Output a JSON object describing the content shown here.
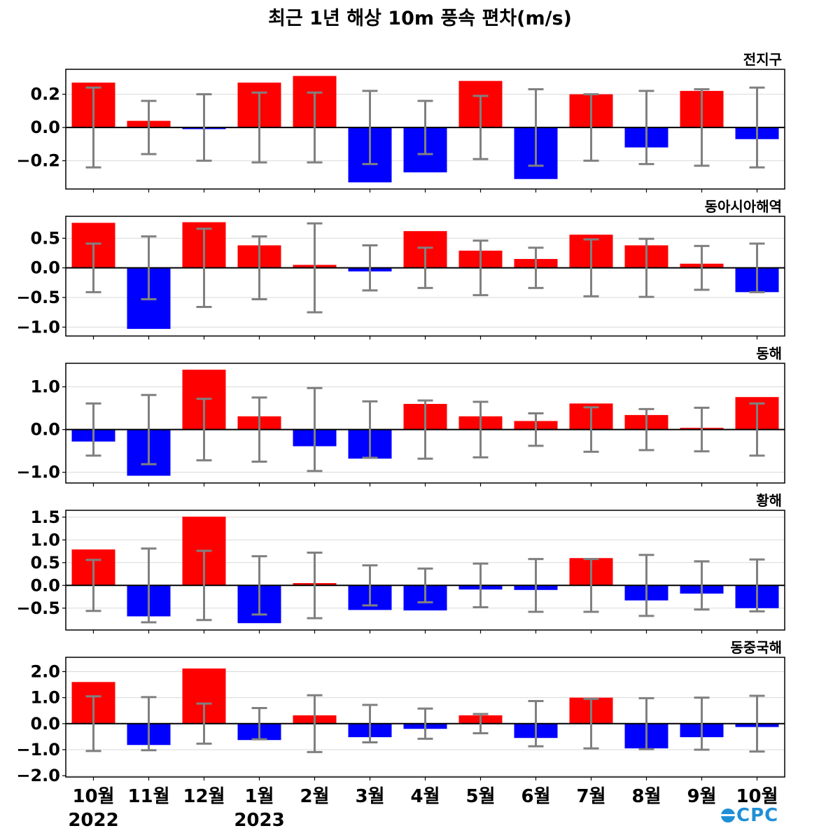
{
  "title": "최근 1년 해상 10m 풍속 편차(m/s)",
  "colors": {
    "positive": "#ff0000",
    "negative": "#0000ff",
    "errorbar": "#808080",
    "zero_line": "#000000",
    "grid": "#d9d9d9"
  },
  "logo": "OCPC",
  "chart_data": {
    "type": "bar",
    "categories": [
      "10월",
      "11월",
      "12월",
      "1월",
      "2월",
      "3월",
      "4월",
      "5월",
      "6월",
      "7월",
      "8월",
      "9월",
      "10월"
    ],
    "year_labels": [
      {
        "text": "2022",
        "category_index": 0
      },
      {
        "text": "2023",
        "category_index": 3
      }
    ],
    "panels": [
      {
        "title": "전지구",
        "ylim": [
          -0.37,
          0.35
        ],
        "yticks": [
          0.2,
          0.0,
          -0.2
        ],
        "ytick_labels": [
          "0.2",
          "0.0",
          "−0.2"
        ],
        "values": [
          0.27,
          0.04,
          -0.01,
          0.27,
          0.31,
          -0.33,
          -0.27,
          0.28,
          -0.31,
          0.2,
          -0.12,
          0.22,
          -0.07
        ],
        "errors": [
          0.24,
          0.16,
          0.2,
          0.21,
          0.21,
          0.22,
          0.16,
          0.19,
          0.23,
          0.2,
          0.22,
          0.23,
          0.24
        ]
      },
      {
        "title": "동아시아해역",
        "ylim": [
          -1.15,
          0.87
        ],
        "yticks": [
          0.5,
          0.0,
          -0.5,
          -1.0
        ],
        "ytick_labels": [
          "0.5",
          "0.0",
          "−0.5",
          "−1.0"
        ],
        "values": [
          0.76,
          -1.03,
          0.77,
          0.38,
          0.05,
          -0.06,
          0.62,
          0.29,
          0.15,
          0.56,
          0.38,
          0.07,
          -0.41
        ],
        "errors": [
          0.41,
          0.53,
          0.66,
          0.53,
          0.75,
          0.38,
          0.34,
          0.46,
          0.34,
          0.48,
          0.49,
          0.37,
          0.41
        ]
      },
      {
        "title": "동해",
        "ylim": [
          -1.25,
          1.55
        ],
        "yticks": [
          1.0,
          0.0,
          -1.0
        ],
        "ytick_labels": [
          "1.0",
          "0.0",
          "−1.0"
        ],
        "values": [
          -0.28,
          -1.08,
          1.4,
          0.31,
          -0.39,
          -0.68,
          0.6,
          0.31,
          0.2,
          0.61,
          0.34,
          0.04,
          0.76
        ],
        "errors": [
          0.61,
          0.81,
          0.72,
          0.75,
          0.97,
          0.66,
          0.68,
          0.65,
          0.38,
          0.52,
          0.48,
          0.51,
          0.61
        ]
      },
      {
        "title": "황해",
        "ylim": [
          -0.98,
          1.65
        ],
        "yticks": [
          1.5,
          1.0,
          0.5,
          0.0,
          -0.5
        ],
        "ytick_labels": [
          "1.5",
          "1.0",
          "0.5",
          "0.0",
          "−0.5"
        ],
        "values": [
          0.79,
          -0.68,
          1.51,
          -0.83,
          0.05,
          -0.54,
          -0.55,
          -0.09,
          -0.1,
          0.6,
          -0.33,
          -0.18,
          -0.5
        ],
        "errors": [
          0.56,
          0.81,
          0.76,
          0.64,
          0.72,
          0.44,
          0.37,
          0.48,
          0.58,
          0.58,
          0.67,
          0.53,
          0.57
        ]
      },
      {
        "title": "동중국해",
        "ylim": [
          -2.05,
          2.55
        ],
        "yticks": [
          2.0,
          1.0,
          0.0,
          -1.0,
          -2.0
        ],
        "ytick_labels": [
          "2.0",
          "1.0",
          "0.0",
          "−1.0",
          "−2.0"
        ],
        "values": [
          1.6,
          -0.82,
          2.12,
          -0.63,
          0.32,
          -0.52,
          -0.2,
          0.32,
          -0.55,
          1.0,
          -0.95,
          -0.52,
          -0.13
        ],
        "errors": [
          1.05,
          1.02,
          0.77,
          0.6,
          1.09,
          0.72,
          0.58,
          0.37,
          0.87,
          0.95,
          0.98,
          1.0,
          1.07
        ]
      }
    ]
  }
}
